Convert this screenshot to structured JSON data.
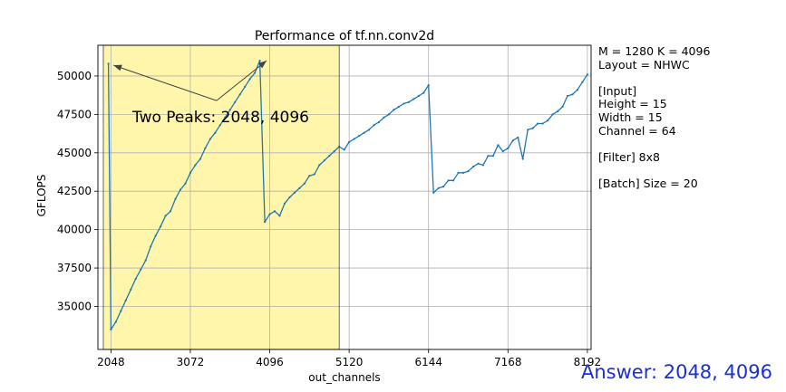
{
  "chart_data": {
    "type": "line",
    "title": "Performance of tf.nn.conv2d",
    "xlabel": "out_channels",
    "ylabel": "GFLOPS",
    "xlim": [
      1880,
      8240
    ],
    "ylim": [
      32200,
      52000
    ],
    "xticks": [
      2048,
      3072,
      4096,
      5120,
      6144,
      7168,
      8192
    ],
    "yticks": [
      35000,
      37500,
      40000,
      42500,
      45000,
      47500,
      50000
    ],
    "grid": true,
    "highlight_span": [
      1950,
      4992
    ],
    "annotation": {
      "text": "Two Peaks: 2048, 4096",
      "arrow_targets": [
        [
          2080,
          50700
        ],
        [
          4055,
          51000
        ]
      ],
      "arrow_origin": [
        3410,
        48400
      ]
    },
    "series": [
      {
        "color": "#1f77b4",
        "x": [
          2016,
          2048,
          2112,
          2176,
          2240,
          2304,
          2368,
          2432,
          2496,
          2560,
          2624,
          2688,
          2752,
          2816,
          2880,
          2944,
          3008,
          3072,
          3136,
          3200,
          3264,
          3328,
          3392,
          3456,
          3520,
          3584,
          3648,
          3712,
          3776,
          3840,
          3904,
          3968,
          4032,
          4096,
          4160,
          4224,
          4288,
          4352,
          4416,
          4480,
          4544,
          4608,
          4672,
          4736,
          4800,
          4864,
          4928,
          4992,
          5056,
          5120,
          5184,
          5248,
          5312,
          5376,
          5440,
          5504,
          5568,
          5632,
          5696,
          5760,
          5824,
          5888,
          5952,
          6016,
          6080,
          6144,
          6208,
          6272,
          6336,
          6400,
          6464,
          6528,
          6592,
          6656,
          6720,
          6784,
          6848,
          6912,
          6976,
          7040,
          7104,
          7168,
          7232,
          7296,
          7360,
          7424,
          7488,
          7552,
          7616,
          7680,
          7744,
          7808,
          7872,
          7936,
          8000,
          8064,
          8128,
          8192
        ],
        "values": [
          50800,
          33500,
          34000,
          34700,
          35400,
          36100,
          36800,
          37400,
          38000,
          38900,
          39600,
          40200,
          40900,
          41200,
          42000,
          42600,
          43000,
          43700,
          44200,
          44600,
          45300,
          45900,
          46300,
          46800,
          47300,
          47800,
          48300,
          48800,
          49300,
          49800,
          50200,
          51000,
          40500,
          41000,
          41200,
          40900,
          41700,
          42100,
          42400,
          42700,
          43000,
          43500,
          43600,
          44200,
          44500,
          44800,
          45100,
          45400,
          45200,
          45700,
          45900,
          46100,
          46300,
          46500,
          46800,
          47000,
          47300,
          47500,
          47800,
          48000,
          48200,
          48300,
          48500,
          48700,
          48900,
          49400,
          42400,
          42700,
          42800,
          43200,
          43200,
          43700,
          43700,
          43800,
          44100,
          44300,
          44200,
          44800,
          44800,
          45500,
          45100,
          45300,
          45800,
          46000,
          44600,
          46500,
          46600,
          46900,
          46900,
          47100,
          47500,
          47700,
          48000,
          48700,
          48800,
          49100,
          49600,
          50100
        ]
      }
    ]
  },
  "info_lines": [
    "M = 1280 K = 4096",
    "Layout = NHWC",
    "",
    "[Input]",
    "Height = 15",
    "Width = 15",
    "Channel = 64",
    "",
    "[Filter] 8x8",
    "",
    "[Batch] Size = 20"
  ],
  "answer": "Answer: 2048, 4096"
}
